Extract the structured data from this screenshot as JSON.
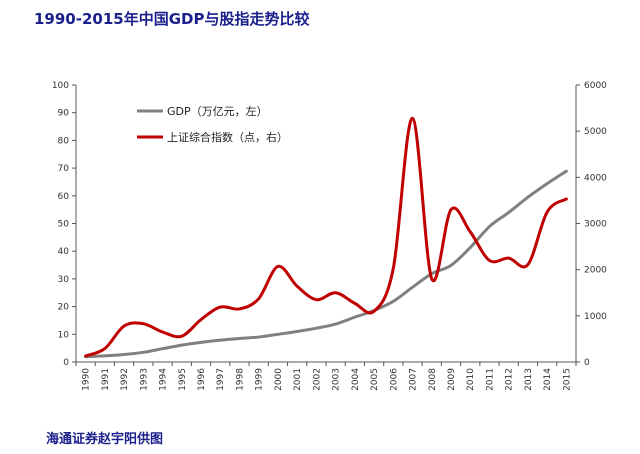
{
  "title": "1990-2015年中国GDP与股指走势比较",
  "source": "海通证券赵宇阳供图",
  "chart_data": {
    "type": "line",
    "title": "1990-2015年中国GDP与股指走势比较",
    "x": [
      "1990",
      "1991",
      "1992",
      "1993",
      "1994",
      "1995",
      "1996",
      "1997",
      "1998",
      "1999",
      "2000",
      "2001",
      "2002",
      "2003",
      "2004",
      "2005",
      "2006",
      "2007",
      "2008",
      "2009",
      "2010",
      "2011",
      "2012",
      "2013",
      "2014",
      "2015"
    ],
    "y_left": {
      "ylim": [
        0,
        100
      ],
      "ticks": [
        "0",
        "10",
        "20",
        "30",
        "40",
        "50",
        "60",
        "70",
        "80",
        "90",
        "100"
      ]
    },
    "y_right": {
      "ylim": [
        0,
        6000
      ],
      "ticks": [
        "0",
        "1000",
        "2000",
        "3000",
        "4000",
        "5000",
        "6000"
      ]
    },
    "grid": false,
    "legend_position": "top-left",
    "series": [
      {
        "name": "GDP（万亿元，左）",
        "axis": "left",
        "color": "#808080",
        "values": [
          1.9,
          2.2,
          2.7,
          3.5,
          4.8,
          6.1,
          7.1,
          7.9,
          8.5,
          9.0,
          10.0,
          11.0,
          12.2,
          13.7,
          16.2,
          18.6,
          21.9,
          27.0,
          31.9,
          34.9,
          41.3,
          48.9,
          54.0,
          59.5,
          64.4,
          68.9
        ]
      },
      {
        "name": "上证综合指数（点，右）",
        "axis": "right",
        "color": "#c00000",
        "values": [
          130,
          290,
          780,
          830,
          650,
          560,
          920,
          1190,
          1150,
          1370,
          2070,
          1640,
          1350,
          1500,
          1270,
          1100,
          2030,
          5280,
          1800,
          3300,
          2820,
          2200,
          2250,
          2110,
          3250,
          3530
        ]
      }
    ]
  }
}
